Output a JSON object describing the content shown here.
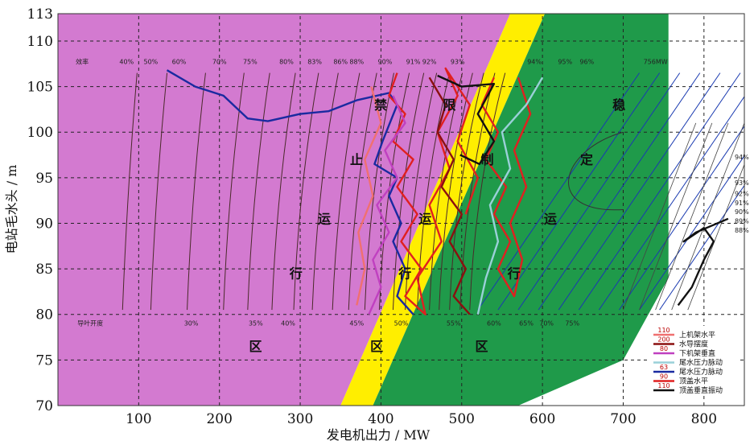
{
  "chart_data": {
    "type": "line",
    "xlabel": "发电机出力 / MW",
    "ylabel": "电站毛水头 / m",
    "xlim": [
      0,
      850
    ],
    "ylim": [
      70,
      113
    ],
    "x_ticks": [
      100,
      200,
      300,
      400,
      500,
      600,
      700,
      800
    ],
    "y_ticks": [
      70,
      75,
      80,
      85,
      90,
      95,
      100,
      105,
      110,
      113
    ],
    "grid": true,
    "top_label_row": {
      "label": "效率",
      "values": [
        "40%",
        "50%",
        "60%",
        "70%",
        "75%",
        "80%",
        "83%",
        "86%",
        "88%",
        "90%",
        "91%",
        "92%",
        "93%",
        "94%",
        "95%",
        "96%"
      ]
    },
    "max_output_label": "756MW",
    "bottom_label_row": {
      "label": "导叶开度",
      "values": [
        "30%",
        "35%",
        "40%",
        "45%",
        "50%",
        "55%",
        "60%",
        "65%",
        "70%",
        "75%"
      ]
    },
    "right_efficiency_labels": [
      "94%",
      "93%",
      "92%",
      "91%",
      "90%",
      "89%",
      "88%"
    ],
    "zone_chars": {
      "forbidden": [
        "禁",
        "止",
        "运",
        "行",
        "区"
      ],
      "restricted": [
        "限",
        "制",
        "运",
        "行",
        "区"
      ],
      "stable": [
        "稳",
        "定",
        "运",
        "行",
        "区"
      ]
    },
    "zone_colors": {
      "forbidden": "#d37ad0",
      "restricted": "#ffee00",
      "stable": "#1f9a4a"
    },
    "legend": [
      {
        "value": "110",
        "label": "上机架水平",
        "color": "#f07070"
      },
      {
        "value": "200",
        "label": "水导摆度",
        "color": "#8b1010"
      },
      {
        "value": "80",
        "label": "下机架垂直",
        "color": "#c040c0"
      },
      {
        "value": "",
        "label": "尾水压力脉动",
        "color": "#9ad0d8"
      },
      {
        "value": "63",
        "label": "尾水压力脉动",
        "color": "#1a2aa0"
      },
      {
        "value": "90",
        "label": "顶盖水平",
        "color": "#e02020"
      },
      {
        "value": "110",
        "label": "顶盖垂直振动",
        "color": "#111111"
      }
    ],
    "series": [
      {
        "legend_index": 4,
        "color": "#1a2aa0",
        "points": [
          [
            135,
            106.8
          ],
          [
            170,
            105
          ],
          [
            205,
            104
          ],
          [
            235,
            101.5
          ],
          [
            260,
            101.2
          ],
          [
            300,
            102
          ],
          [
            335,
            102.3
          ],
          [
            370,
            103.5
          ],
          [
            410,
            104.3
          ],
          [
            420,
            103
          ],
          [
            402,
            99
          ],
          [
            392,
            96.5
          ],
          [
            420,
            95
          ],
          [
            410,
            93
          ],
          [
            425,
            90
          ],
          [
            415,
            88
          ],
          [
            430,
            85
          ],
          [
            420,
            82
          ],
          [
            440,
            80
          ]
        ]
      },
      {
        "legend_index": 5,
        "color": "#e02020",
        "points": [
          [
            420,
            106.5
          ],
          [
            410,
            104
          ],
          [
            430,
            102
          ],
          [
            415,
            99
          ],
          [
            440,
            97
          ],
          [
            420,
            94
          ],
          [
            445,
            91
          ],
          [
            425,
            88
          ],
          [
            450,
            85
          ],
          [
            430,
            82
          ],
          [
            455,
            80
          ],
          [
            445,
            84
          ],
          [
            475,
            88
          ],
          [
            460,
            92
          ],
          [
            485,
            96
          ],
          [
            470,
            100
          ],
          [
            495,
            104
          ],
          [
            480,
            107
          ],
          [
            510,
            103
          ],
          [
            495,
            99
          ],
          [
            520,
            95
          ],
          [
            505,
            91
          ]
        ]
      },
      {
        "legend_index": 5,
        "color": "#e02020",
        "points": [
          [
            540,
            106
          ],
          [
            525,
            103
          ],
          [
            545,
            100
          ],
          [
            530,
            97
          ],
          [
            555,
            94
          ],
          [
            540,
            91
          ],
          [
            560,
            88
          ],
          [
            545,
            85
          ],
          [
            565,
            82
          ],
          [
            575,
            86
          ],
          [
            560,
            90
          ],
          [
            580,
            94
          ],
          [
            565,
            98
          ],
          [
            585,
            102
          ],
          [
            570,
            106
          ]
        ]
      },
      {
        "legend_index": 1,
        "color": "#8b1010",
        "points": [
          [
            460,
            106
          ],
          [
            480,
            103
          ],
          [
            470,
            100
          ],
          [
            490,
            97
          ],
          [
            475,
            94
          ],
          [
            500,
            91
          ],
          [
            485,
            88
          ],
          [
            505,
            85
          ],
          [
            490,
            82
          ],
          [
            510,
            80
          ]
        ]
      },
      {
        "legend_index": 6,
        "color": "#111111",
        "points": [
          [
            470,
            106.2
          ],
          [
            500,
            105
          ],
          [
            540,
            105.3
          ],
          [
            520,
            102
          ],
          [
            540,
            99
          ],
          [
            522,
            96.5
          ],
          [
            498,
            97.5
          ]
        ]
      },
      {
        "legend_index": 2,
        "color": "#c040c0",
        "points": [
          [
            385,
            80
          ],
          [
            400,
            83
          ],
          [
            390,
            86
          ],
          [
            410,
            89
          ],
          [
            395,
            92
          ],
          [
            420,
            95
          ],
          [
            405,
            98
          ],
          [
            430,
            101
          ],
          [
            415,
            104
          ]
        ]
      },
      {
        "legend_index": 3,
        "color": "#9ad0d8",
        "points": [
          [
            520,
            80
          ],
          [
            530,
            84
          ],
          [
            545,
            88
          ],
          [
            535,
            92
          ],
          [
            560,
            96
          ],
          [
            550,
            100
          ],
          [
            580,
            103
          ],
          [
            600,
            106
          ]
        ]
      },
      {
        "legend_index": 0,
        "color": "#f07070",
        "points": [
          [
            370,
            81
          ],
          [
            380,
            85
          ],
          [
            372,
            89
          ],
          [
            390,
            93
          ],
          [
            380,
            97
          ],
          [
            400,
            101
          ],
          [
            388,
            105
          ]
        ]
      },
      {
        "legend_index": 6,
        "color": "#111111",
        "points": [
          [
            768,
            81
          ],
          [
            785,
            83
          ],
          [
            800,
            86
          ],
          [
            812,
            88
          ],
          [
            800,
            89.5
          ],
          [
            775,
            88
          ],
          [
            790,
            89
          ],
          [
            830,
            90.5
          ]
        ]
      }
    ]
  }
}
